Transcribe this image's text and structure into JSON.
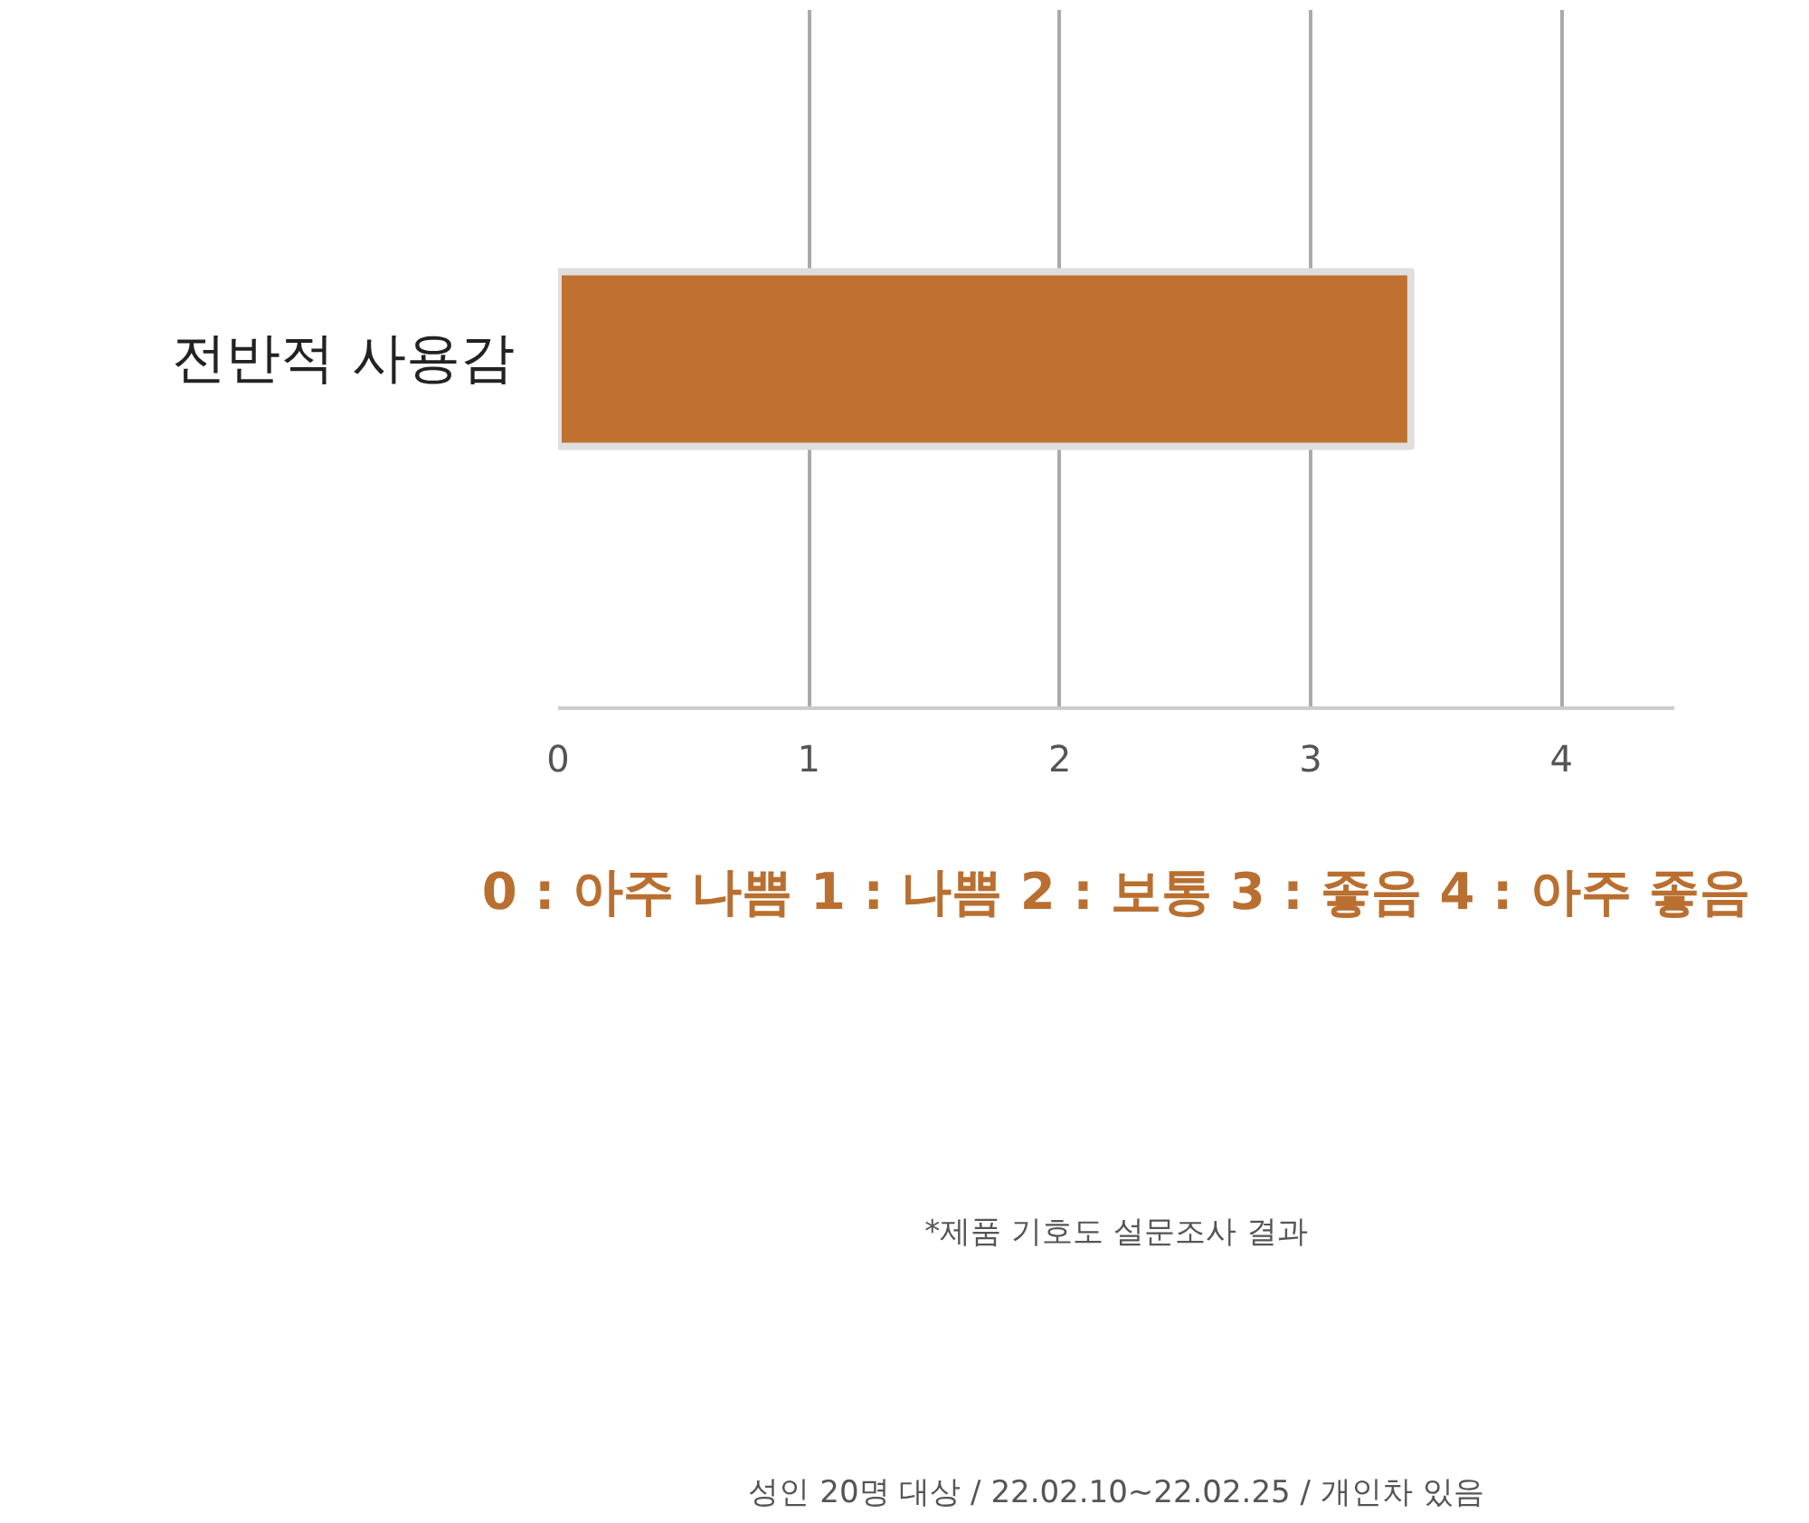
{
  "chart_data": {
    "type": "bar",
    "orientation": "horizontal",
    "categories": [
      "전반적 사용감"
    ],
    "values": [
      3.4
    ],
    "color": "#c0702f",
    "xlim": [
      0,
      4.45
    ],
    "xticks": [
      0,
      1,
      2,
      3,
      4
    ],
    "grid": "x",
    "annotations": [
      "0 : 아주 나쁨 1 : 나쁨 2 : 보통 3 : 좋음 4 : 아주 좋음",
      "*제품 기호도 설문조사 결과",
      "성인 20명 대상 / 22.02.10~22.02.25 / 개인차 있음"
    ]
  }
}
